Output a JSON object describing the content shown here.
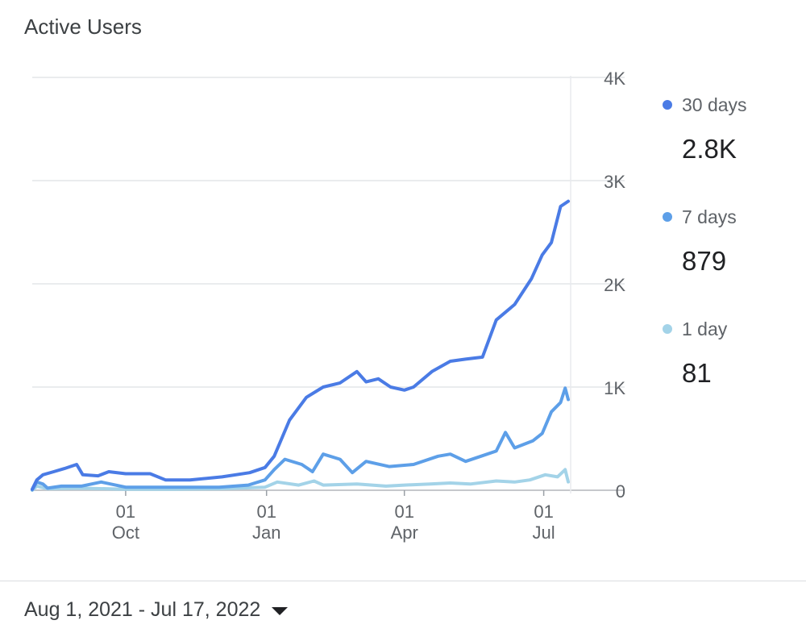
{
  "card": {
    "title": "Active Users"
  },
  "legend": [
    {
      "label": "30 days",
      "value": "2.8K",
      "color": "#4a7be5"
    },
    {
      "label": "7 days",
      "value": "879",
      "color": "#5d9fe8"
    },
    {
      "label": "1 day",
      "value": "81",
      "color": "#a3d3e8"
    }
  ],
  "footer": {
    "date_range": "Aug 1, 2021 - Jul 17, 2022",
    "dropdown_icon": "caret-down-icon"
  },
  "chart_data": {
    "type": "line",
    "x_range": [
      "2021-08-01",
      "2022-07-17"
    ],
    "ylim": [
      0,
      4000
    ],
    "y_ticks": [
      {
        "value": 0,
        "label": "0"
      },
      {
        "value": 1000,
        "label": "1K"
      },
      {
        "value": 2000,
        "label": "2K"
      },
      {
        "value": 3000,
        "label": "3K"
      },
      {
        "value": 4000,
        "label": "4K"
      }
    ],
    "x_ticks": [
      {
        "date": "2021-10-01",
        "day": "01",
        "month": "Oct"
      },
      {
        "date": "2022-01-01",
        "day": "01",
        "month": "Jan"
      },
      {
        "date": "2022-04-01",
        "day": "01",
        "month": "Apr"
      },
      {
        "date": "2022-07-01",
        "day": "01",
        "month": "Jul"
      }
    ],
    "grid": true,
    "legend_position": "right",
    "series": [
      {
        "name": "30 days",
        "color": "#4a7be5",
        "points": [
          [
            "2021-08-01",
            10
          ],
          [
            "2021-08-04",
            100
          ],
          [
            "2021-08-08",
            150
          ],
          [
            "2021-08-15",
            180
          ],
          [
            "2021-08-22",
            210
          ],
          [
            "2021-08-30",
            250
          ],
          [
            "2021-09-03",
            150
          ],
          [
            "2021-09-13",
            140
          ],
          [
            "2021-09-20",
            180
          ],
          [
            "2021-10-01",
            160
          ],
          [
            "2021-10-17",
            160
          ],
          [
            "2021-10-27",
            100
          ],
          [
            "2021-11-12",
            100
          ],
          [
            "2021-12-03",
            130
          ],
          [
            "2021-12-21",
            170
          ],
          [
            "2021-12-31",
            220
          ],
          [
            "2022-01-06",
            330
          ],
          [
            "2022-01-16",
            680
          ],
          [
            "2022-01-27",
            900
          ],
          [
            "2022-02-07",
            1000
          ],
          [
            "2022-02-18",
            1040
          ],
          [
            "2022-03-01",
            1150
          ],
          [
            "2022-03-07",
            1050
          ],
          [
            "2022-03-15",
            1080
          ],
          [
            "2022-03-23",
            1000
          ],
          [
            "2022-04-01",
            970
          ],
          [
            "2022-04-07",
            1000
          ],
          [
            "2022-04-19",
            1150
          ],
          [
            "2022-05-01",
            1250
          ],
          [
            "2022-05-11",
            1270
          ],
          [
            "2022-05-22",
            1290
          ],
          [
            "2022-05-31",
            1650
          ],
          [
            "2022-06-12",
            1800
          ],
          [
            "2022-06-23",
            2050
          ],
          [
            "2022-06-30",
            2280
          ],
          [
            "2022-07-06",
            2400
          ],
          [
            "2022-07-12",
            2750
          ],
          [
            "2022-07-17",
            2800
          ]
        ]
      },
      {
        "name": "7 days",
        "color": "#5d9fe8",
        "points": [
          [
            "2021-08-01",
            5
          ],
          [
            "2021-08-04",
            80
          ],
          [
            "2021-08-08",
            60
          ],
          [
            "2021-08-11",
            20
          ],
          [
            "2021-08-20",
            40
          ],
          [
            "2021-09-02",
            40
          ],
          [
            "2021-09-15",
            80
          ],
          [
            "2021-10-01",
            30
          ],
          [
            "2021-11-01",
            30
          ],
          [
            "2021-12-01",
            30
          ],
          [
            "2021-12-20",
            50
          ],
          [
            "2021-12-31",
            100
          ],
          [
            "2022-01-06",
            200
          ],
          [
            "2022-01-13",
            300
          ],
          [
            "2022-01-24",
            250
          ],
          [
            "2022-01-31",
            180
          ],
          [
            "2022-02-07",
            350
          ],
          [
            "2022-02-18",
            300
          ],
          [
            "2022-02-26",
            170
          ],
          [
            "2022-03-07",
            280
          ],
          [
            "2022-03-22",
            230
          ],
          [
            "2022-04-07",
            250
          ],
          [
            "2022-04-23",
            330
          ],
          [
            "2022-05-01",
            350
          ],
          [
            "2022-05-11",
            280
          ],
          [
            "2022-05-21",
            330
          ],
          [
            "2022-05-31",
            380
          ],
          [
            "2022-06-06",
            560
          ],
          [
            "2022-06-12",
            410
          ],
          [
            "2022-06-24",
            480
          ],
          [
            "2022-06-30",
            550
          ],
          [
            "2022-07-06",
            760
          ],
          [
            "2022-07-12",
            850
          ],
          [
            "2022-07-15",
            990
          ],
          [
            "2022-07-17",
            879
          ]
        ]
      },
      {
        "name": "1 day",
        "color": "#a3d3e8",
        "points": [
          [
            "2021-08-01",
            0
          ],
          [
            "2021-08-04",
            40
          ],
          [
            "2021-08-11",
            15
          ],
          [
            "2021-09-01",
            20
          ],
          [
            "2021-10-01",
            10
          ],
          [
            "2021-11-01",
            10
          ],
          [
            "2021-12-01",
            15
          ],
          [
            "2021-12-31",
            30
          ],
          [
            "2022-01-08",
            80
          ],
          [
            "2022-01-22",
            50
          ],
          [
            "2022-02-01",
            90
          ],
          [
            "2022-02-07",
            50
          ],
          [
            "2022-03-01",
            60
          ],
          [
            "2022-03-20",
            40
          ],
          [
            "2022-04-01",
            50
          ],
          [
            "2022-04-18",
            60
          ],
          [
            "2022-05-01",
            70
          ],
          [
            "2022-05-14",
            60
          ],
          [
            "2022-05-31",
            90
          ],
          [
            "2022-06-12",
            80
          ],
          [
            "2022-06-22",
            100
          ],
          [
            "2022-07-02",
            150
          ],
          [
            "2022-07-10",
            130
          ],
          [
            "2022-07-15",
            200
          ],
          [
            "2022-07-17",
            81
          ]
        ]
      }
    ]
  }
}
